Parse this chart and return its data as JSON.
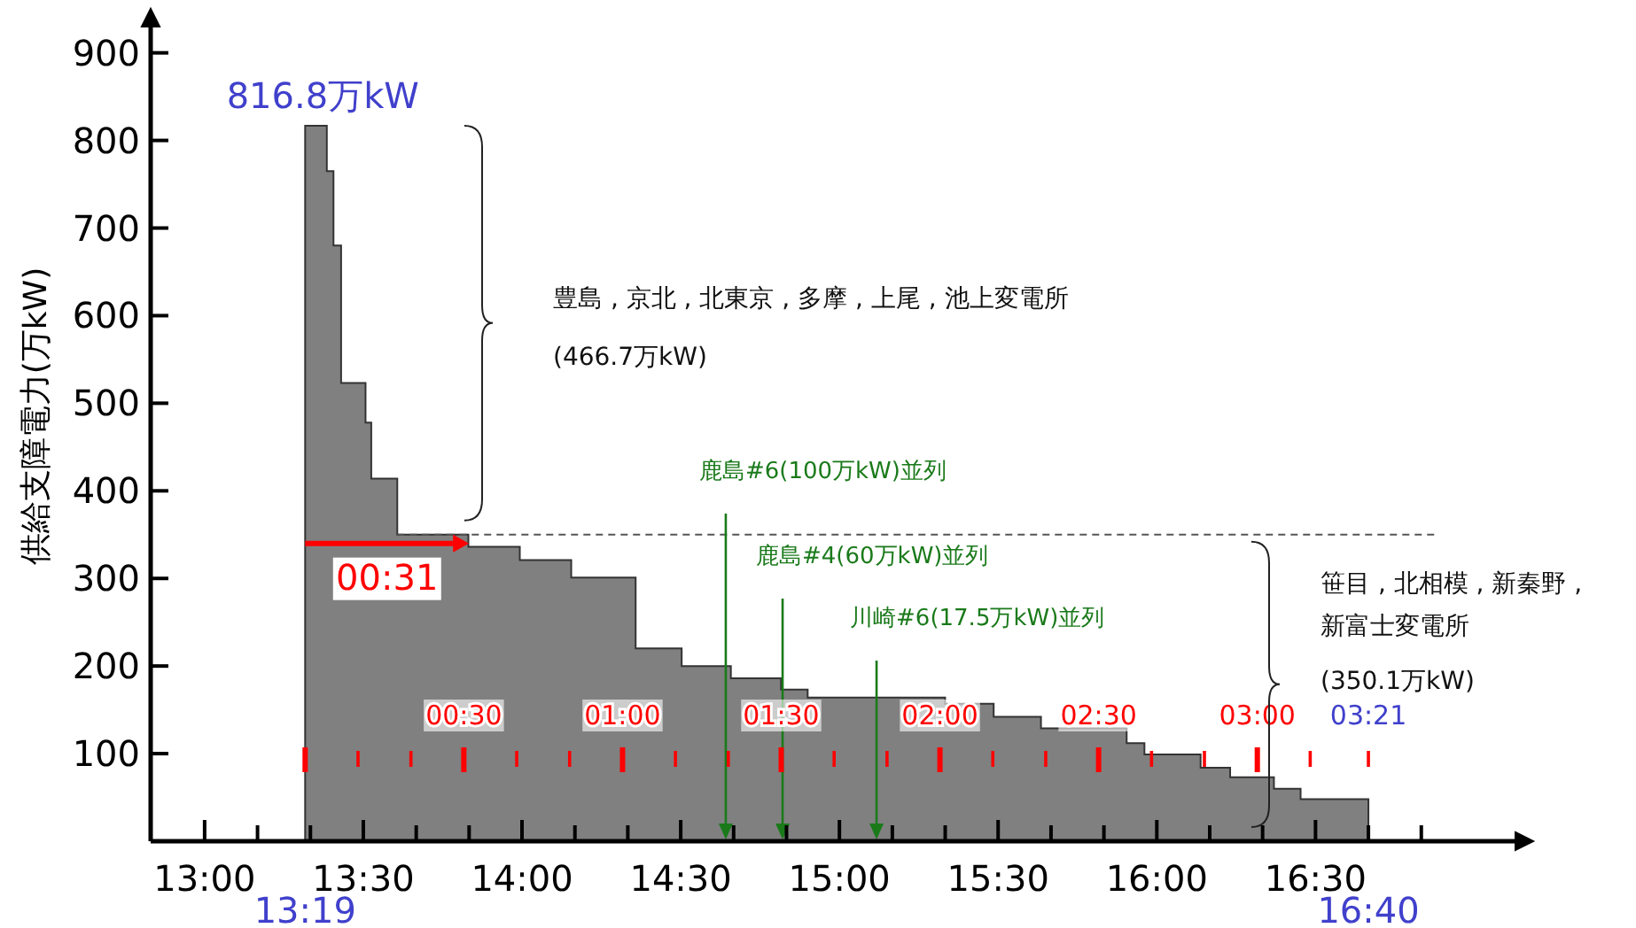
{
  "chart_data": {
    "type": "area",
    "ylabel": "供給支障電力(万kW)",
    "x": [
      13.3167,
      13.385,
      13.385,
      13.406,
      13.406,
      13.43,
      13.43,
      13.507,
      13.507,
      13.525,
      13.525,
      13.607,
      13.607,
      13.831,
      13.831,
      13.993,
      13.993,
      14.155,
      14.155,
      14.358,
      14.358,
      14.503,
      14.503,
      14.658,
      14.658,
      14.816,
      14.816,
      14.9,
      14.9,
      15.333,
      15.333,
      15.486,
      15.486,
      15.635,
      15.635,
      15.905,
      15.905,
      15.961,
      15.961,
      16.138,
      16.138,
      16.231,
      16.231,
      16.369,
      16.369,
      16.453,
      16.453,
      16.6667,
      16.6667
    ],
    "series": [
      {
        "color": "#808080",
        "values": [
          816.8,
          816.8,
          765,
          765,
          680,
          680,
          523,
          523,
          478,
          478,
          414,
          414,
          350.1,
          350.1,
          336,
          336,
          321,
          321,
          301,
          301,
          220,
          220,
          200,
          200,
          186,
          186,
          173,
          173,
          164,
          164,
          157,
          157,
          142,
          142,
          129,
          129,
          112,
          112,
          99,
          99,
          84,
          84,
          73,
          73,
          60,
          60,
          48,
          48,
          0
        ]
      }
    ],
    "xlim": [
      12.83,
      17.13
    ],
    "xticks": [
      {
        "value": 13,
        "label": "13:00"
      },
      {
        "value": 13.1667,
        "label": null
      },
      {
        "value": 13.3333,
        "label": null
      },
      {
        "value": 13.5,
        "label": "13:30"
      },
      {
        "value": 13.6667,
        "label": null
      },
      {
        "value": 13.8333,
        "label": null
      },
      {
        "value": 14,
        "label": "14:00"
      },
      {
        "value": 14.1667,
        "label": null
      },
      {
        "value": 14.3333,
        "label": null
      },
      {
        "value": 14.5,
        "label": "14:30"
      },
      {
        "value": 14.6667,
        "label": null
      },
      {
        "value": 14.8333,
        "label": null
      },
      {
        "value": 15,
        "label": "15:00"
      },
      {
        "value": 15.1667,
        "label": null
      },
      {
        "value": 15.3333,
        "label": null
      },
      {
        "value": 15.5,
        "label": "15:30"
      },
      {
        "value": 15.6667,
        "label": null
      },
      {
        "value": 15.8333,
        "label": null
      },
      {
        "value": 16,
        "label": "16:00"
      },
      {
        "value": 16.1667,
        "label": null
      },
      {
        "value": 16.3333,
        "label": null
      },
      {
        "value": 16.5,
        "label": "16:30"
      },
      {
        "value": 16.6667,
        "label": null
      },
      {
        "value": 16.8333,
        "label": null
      }
    ],
    "x2lim": [
      -29.2,
      228.8
    ],
    "x2ticks": [
      {
        "value": 0,
        "label": null
      },
      {
        "value": 10,
        "label": null
      },
      {
        "value": 20,
        "label": null
      },
      {
        "value": 30,
        "label": "00:30"
      },
      {
        "value": 40,
        "label": null
      },
      {
        "value": 50,
        "label": null
      },
      {
        "value": 60,
        "label": "01:00"
      },
      {
        "value": 70,
        "label": null
      },
      {
        "value": 80,
        "label": null
      },
      {
        "value": 90,
        "label": "01:30"
      },
      {
        "value": 100,
        "label": null
      },
      {
        "value": 110,
        "label": null
      },
      {
        "value": 120,
        "label": "02:00"
      },
      {
        "value": 130,
        "label": null
      },
      {
        "value": 140,
        "label": null
      },
      {
        "value": 150,
        "label": "02:30"
      },
      {
        "value": 160,
        "label": null
      },
      {
        "value": 170,
        "label": null
      },
      {
        "value": 180,
        "label": "03:00"
      },
      {
        "value": 190,
        "label": null
      },
      {
        "value": 201,
        "label": "03:21"
      }
    ],
    "ylim": [
      0,
      930
    ],
    "yticks": [
      100,
      200,
      300,
      400,
      500,
      600,
      700,
      800,
      900
    ],
    "grid": false,
    "ref_lines": [
      {
        "axis": "y",
        "value": 350.1,
        "color": "#555555",
        "line_style": "dashed"
      },
      {
        "axis": "x",
        "value": 14.642,
        "label": "鹿島#6(100万kW)並列",
        "color": "#1a7a1a"
      },
      {
        "axis": "x",
        "value": 14.821,
        "label": "鹿島#4(60万kW)並列",
        "color": "#1a7a1a"
      },
      {
        "axis": "x",
        "value": 15.117,
        "label": "川崎#6(17.5万kW)並列",
        "color": "#1a7a1a"
      }
    ],
    "annotations": [
      "豊島 , 京北 , 北東京 , 多摩 , 上尾 , 池上変電所",
      "(466.7万kW)",
      "笹目 , 北相模 , 新秦野 , 新富士変電所",
      "(350.1万kW)",
      {
        "text": "816.8万kW",
        "x": 13.3167,
        "y": 816.8
      },
      {
        "text": "00:31",
        "x": 13.833,
        "y": 340
      },
      "13:19",
      "16:40"
    ]
  }
}
